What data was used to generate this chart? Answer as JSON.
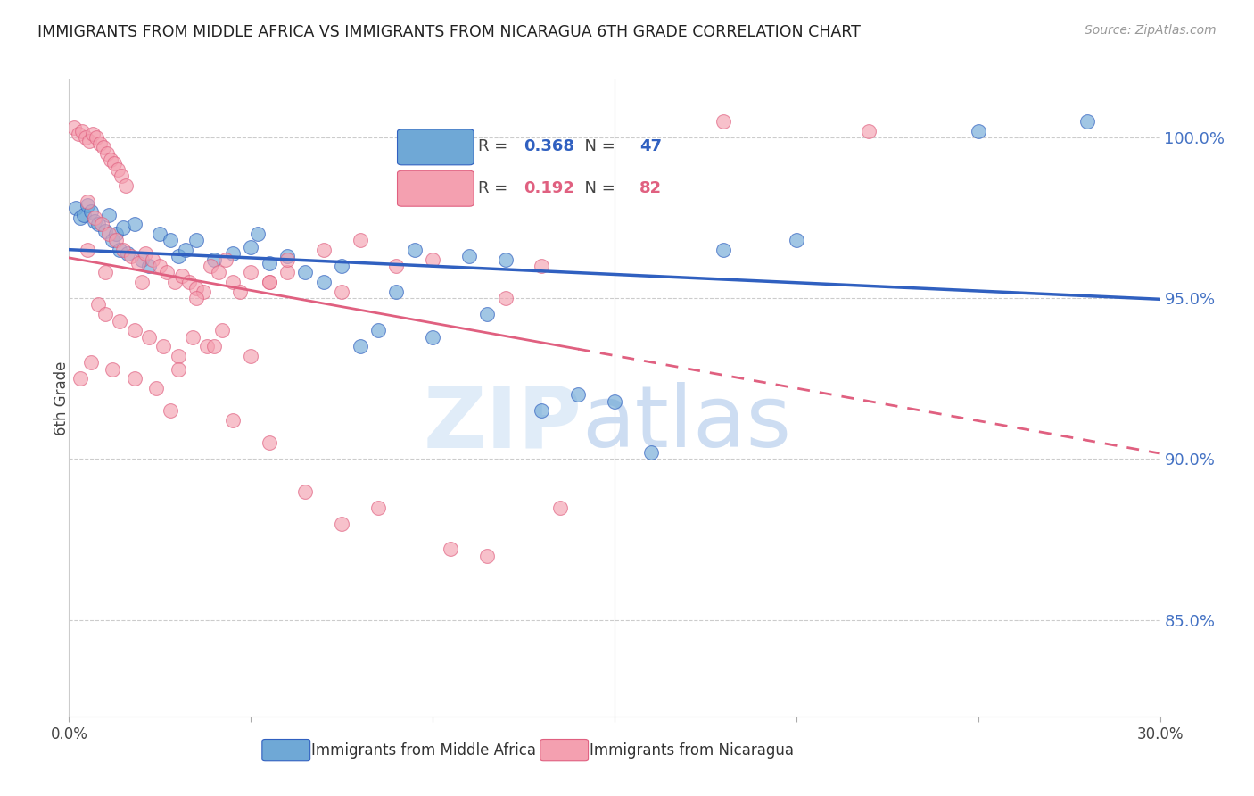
{
  "title": "IMMIGRANTS FROM MIDDLE AFRICA VS IMMIGRANTS FROM NICARAGUA 6TH GRADE CORRELATION CHART",
  "source": "Source: ZipAtlas.com",
  "ylabel": "6th Grade",
  "right_yticks": [
    85.0,
    90.0,
    95.0,
    100.0
  ],
  "xmin": 0.0,
  "xmax": 30.0,
  "ymin": 82.0,
  "ymax": 101.8,
  "R_blue": 0.368,
  "N_blue": 47,
  "R_pink": 0.192,
  "N_pink": 82,
  "blue_color": "#6fa8d6",
  "pink_color": "#f4a0b0",
  "trend_blue": "#3060c0",
  "trend_pink": "#e06080",
  "blue_scatter": [
    [
      0.2,
      97.8
    ],
    [
      0.3,
      97.5
    ],
    [
      0.4,
      97.6
    ],
    [
      0.5,
      97.9
    ],
    [
      0.6,
      97.7
    ],
    [
      0.7,
      97.4
    ],
    [
      0.8,
      97.3
    ],
    [
      1.0,
      97.1
    ],
    [
      1.1,
      97.6
    ],
    [
      1.2,
      96.8
    ],
    [
      1.3,
      97.0
    ],
    [
      1.4,
      96.5
    ],
    [
      1.5,
      97.2
    ],
    [
      1.6,
      96.4
    ],
    [
      1.8,
      97.3
    ],
    [
      2.0,
      96.2
    ],
    [
      2.2,
      96.0
    ],
    [
      2.5,
      97.0
    ],
    [
      2.8,
      96.8
    ],
    [
      3.0,
      96.3
    ],
    [
      3.2,
      96.5
    ],
    [
      3.5,
      96.8
    ],
    [
      4.0,
      96.2
    ],
    [
      4.5,
      96.4
    ],
    [
      5.0,
      96.6
    ],
    [
      5.2,
      97.0
    ],
    [
      5.5,
      96.1
    ],
    [
      6.0,
      96.3
    ],
    [
      6.5,
      95.8
    ],
    [
      7.0,
      95.5
    ],
    [
      7.5,
      96.0
    ],
    [
      8.0,
      93.5
    ],
    [
      8.5,
      94.0
    ],
    [
      9.0,
      95.2
    ],
    [
      9.5,
      96.5
    ],
    [
      10.0,
      93.8
    ],
    [
      11.0,
      96.3
    ],
    [
      11.5,
      94.5
    ],
    [
      12.0,
      96.2
    ],
    [
      13.0,
      91.5
    ],
    [
      14.0,
      92.0
    ],
    [
      15.0,
      91.8
    ],
    [
      16.0,
      90.2
    ],
    [
      18.0,
      96.5
    ],
    [
      20.0,
      96.8
    ],
    [
      25.0,
      100.2
    ],
    [
      28.0,
      100.5
    ]
  ],
  "pink_scatter": [
    [
      0.15,
      100.3
    ],
    [
      0.25,
      100.1
    ],
    [
      0.35,
      100.2
    ],
    [
      0.45,
      100.0
    ],
    [
      0.55,
      99.9
    ],
    [
      0.65,
      100.1
    ],
    [
      0.75,
      100.0
    ],
    [
      0.85,
      99.8
    ],
    [
      0.95,
      99.7
    ],
    [
      1.05,
      99.5
    ],
    [
      1.15,
      99.3
    ],
    [
      1.25,
      99.2
    ],
    [
      1.35,
      99.0
    ],
    [
      1.45,
      98.8
    ],
    [
      1.55,
      98.5
    ],
    [
      0.5,
      98.0
    ],
    [
      0.7,
      97.5
    ],
    [
      0.9,
      97.3
    ],
    [
      1.1,
      97.0
    ],
    [
      1.3,
      96.8
    ],
    [
      1.5,
      96.5
    ],
    [
      1.7,
      96.3
    ],
    [
      1.9,
      96.1
    ],
    [
      2.1,
      96.4
    ],
    [
      2.3,
      96.2
    ],
    [
      2.5,
      96.0
    ],
    [
      2.7,
      95.8
    ],
    [
      2.9,
      95.5
    ],
    [
      3.1,
      95.7
    ],
    [
      3.3,
      95.5
    ],
    [
      3.5,
      95.3
    ],
    [
      3.7,
      95.2
    ],
    [
      3.9,
      96.0
    ],
    [
      4.1,
      95.8
    ],
    [
      4.3,
      96.2
    ],
    [
      4.5,
      95.5
    ],
    [
      4.7,
      95.2
    ],
    [
      5.0,
      95.8
    ],
    [
      5.5,
      95.5
    ],
    [
      6.0,
      95.8
    ],
    [
      0.8,
      94.8
    ],
    [
      1.0,
      94.5
    ],
    [
      1.4,
      94.3
    ],
    [
      1.8,
      94.0
    ],
    [
      2.2,
      93.8
    ],
    [
      2.6,
      93.5
    ],
    [
      3.0,
      93.2
    ],
    [
      3.4,
      93.8
    ],
    [
      3.8,
      93.5
    ],
    [
      4.2,
      94.0
    ],
    [
      0.6,
      93.0
    ],
    [
      1.2,
      92.8
    ],
    [
      1.8,
      92.5
    ],
    [
      2.4,
      92.2
    ],
    [
      3.0,
      92.8
    ],
    [
      4.0,
      93.5
    ],
    [
      5.0,
      93.2
    ],
    [
      6.0,
      96.2
    ],
    [
      7.0,
      96.5
    ],
    [
      8.0,
      96.8
    ],
    [
      0.5,
      96.5
    ],
    [
      1.0,
      95.8
    ],
    [
      2.0,
      95.5
    ],
    [
      3.5,
      95.0
    ],
    [
      5.5,
      95.5
    ],
    [
      7.5,
      95.2
    ],
    [
      9.0,
      96.0
    ],
    [
      10.0,
      96.2
    ],
    [
      12.0,
      95.0
    ],
    [
      13.0,
      96.0
    ],
    [
      4.5,
      91.2
    ],
    [
      5.5,
      90.5
    ],
    [
      6.5,
      89.0
    ],
    [
      7.5,
      88.0
    ],
    [
      8.5,
      88.5
    ],
    [
      10.5,
      87.2
    ],
    [
      11.5,
      87.0
    ],
    [
      13.5,
      88.5
    ],
    [
      0.3,
      92.5
    ],
    [
      2.8,
      91.5
    ],
    [
      18.0,
      100.5
    ],
    [
      22.0,
      100.2
    ]
  ]
}
